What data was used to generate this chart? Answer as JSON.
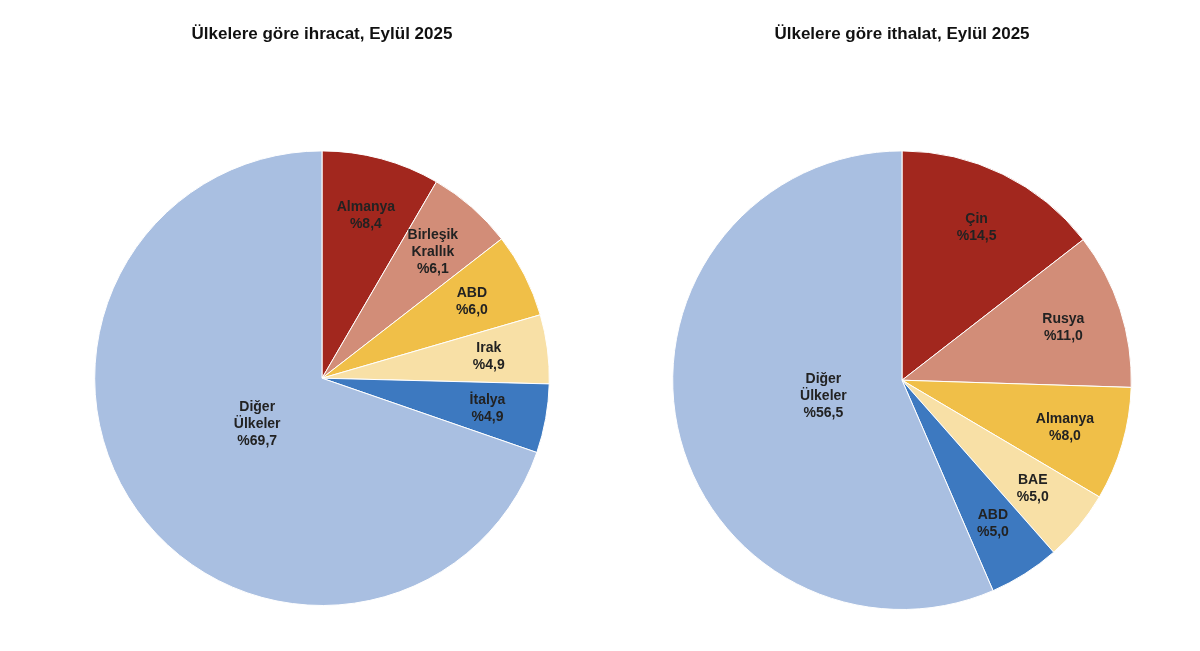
{
  "chart_data": [
    {
      "type": "pie",
      "title": "Ülkelere göre ihracat, Eylül 2025",
      "categories": [
        "Almanya",
        "Birleşik Krallık",
        "ABD",
        "Irak",
        "İtalya",
        "Diğer Ülkeler"
      ],
      "values": [
        8.4,
        6.1,
        6.0,
        4.9,
        4.9,
        69.7
      ],
      "value_labels": [
        "%8,4",
        "%6,1",
        "%6,0",
        "%4,9",
        "%4,9",
        "%69,7"
      ],
      "colors": [
        "#a2271e",
        "#d28d78",
        "#f0bf48",
        "#f8e0a6",
        "#3d79c0",
        "#a9bfe1"
      ],
      "legend": false
    },
    {
      "type": "pie",
      "title": "Ülkelere göre ithalat, Eylül 2025",
      "categories": [
        "Çin",
        "Rusya",
        "Almanya",
        "BAE",
        "ABD",
        "Diğer Ülkeler"
      ],
      "values": [
        14.5,
        11.0,
        8.0,
        5.0,
        5.0,
        56.5
      ],
      "value_labels": [
        "%14,5",
        "%11,0",
        "%8,0",
        "%5,0",
        "%5,0",
        "%56,5"
      ],
      "colors": [
        "#a2271e",
        "#d28d78",
        "#f0bf48",
        "#f8e0a6",
        "#3d79c0",
        "#a9bfe1"
      ],
      "legend": false
    }
  ]
}
